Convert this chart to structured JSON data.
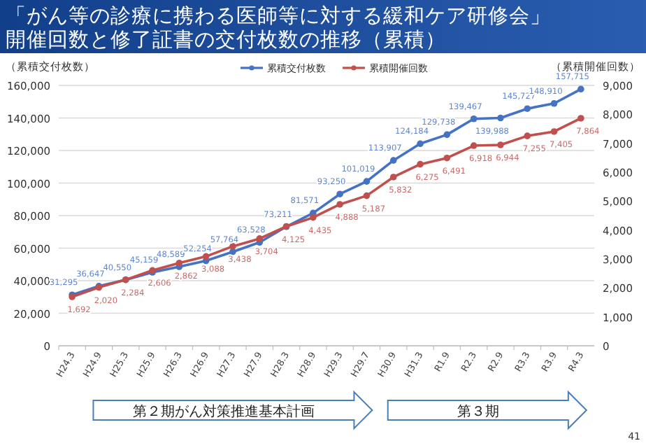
{
  "chart_data": {
    "type": "line",
    "title": "「がん等の診療に携わる医師等に対する緩和ケア研修会」",
    "subtitle": "開催回数と修了証書の交付枚数の推移（累積）",
    "ylabel": "（累積交付枚数）",
    "y2label": "（累積開催回数）",
    "categories": [
      "H24.3",
      "H24.9",
      "H25.3",
      "H25.9",
      "H26.3",
      "H26.9",
      "H27.3",
      "H27.9",
      "H28.3",
      "H28.9",
      "H29.3",
      "H29.7",
      "H30.9",
      "H31.3",
      "R1.9",
      "R2.3",
      "R2.9",
      "R3.3",
      "R3.9",
      "R4.3"
    ],
    "series": [
      {
        "name": "累積交付枚数",
        "color": "#4472c4",
        "values": [
          31295,
          36647,
          40550,
          45159,
          48589,
          52254,
          57764,
          63528,
          73211,
          81571,
          93250,
          101019,
          113907,
          124184,
          129738,
          139467,
          139988,
          145727,
          148910,
          157715
        ],
        "value_labels": [
          "31,295",
          "36,647",
          "40,550",
          "45,159",
          "48,589",
          "52,254",
          "57,764",
          "63,528",
          "73,211",
          "81,571",
          "93,250",
          "101,019",
          "113,907",
          "124,184",
          "129,738",
          "139,467",
          "139,988",
          "145,727",
          "148,910",
          "157,715"
        ]
      },
      {
        "name": "累積開催回数",
        "color": "#c0504d",
        "axis": "y2",
        "values": [
          1692,
          2020,
          2284,
          2606,
          2862,
          3088,
          3438,
          3704,
          4125,
          4435,
          4888,
          5187,
          5832,
          6275,
          6491,
          6918,
          6944,
          7255,
          7405,
          7864
        ],
        "value_labels": [
          "1,692",
          "2,020",
          "2,284",
          "2,606",
          "2,862",
          "3,088",
          "3,438",
          "3,704",
          "4,125",
          "4,435",
          "4,888",
          "5,187",
          "5,832",
          "6,275",
          "6,491",
          "6,918",
          "6,944",
          "7,255",
          "7,405",
          "7,864"
        ]
      }
    ],
    "ylim": [
      0,
      160000
    ],
    "yticks": [
      0,
      {
        "value": 20000,
        "label": "20,000"
      },
      {
        "value": 40000,
        "label": "40,000"
      },
      {
        "value": 60000,
        "label": "60,000"
      },
      {
        "value": 80000,
        "label": "80,000"
      },
      {
        "value": 100000,
        "label": "100,000"
      },
      {
        "value": 120000,
        "label": "120,000"
      },
      {
        "value": 140000,
        "label": "140,000"
      },
      {
        "value": 160000,
        "label": "160,000"
      }
    ],
    "y2lim": [
      0,
      9000
    ],
    "y2ticks": [
      0,
      {
        "value": 1000,
        "label": "1,000"
      },
      {
        "value": 2000,
        "label": "2,000"
      },
      {
        "value": 3000,
        "label": "3,000"
      },
      {
        "value": 4000,
        "label": "4,000"
      },
      {
        "value": 5000,
        "label": "5,000"
      },
      {
        "value": 6000,
        "label": "6,000"
      },
      {
        "value": 7000,
        "label": "7,000"
      },
      {
        "value": 8000,
        "label": "8,000"
      },
      {
        "value": 9000,
        "label": "9,000"
      }
    ],
    "grid": "y",
    "legend": "top",
    "marker": "circle",
    "line_style": "solid",
    "data_labels": true,
    "annotations": [
      "第２期がん対策推進基本計画",
      "第３期",
      "41"
    ]
  }
}
